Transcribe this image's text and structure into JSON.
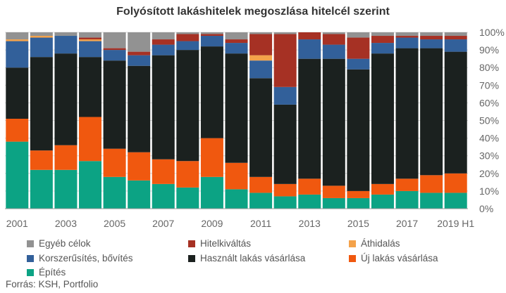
{
  "chart_data": {
    "type": "bar",
    "stacked": true,
    "title": "Folyósított lakáshitelek megoszlása hitelcél szerint",
    "categories": [
      "2001",
      "2002",
      "2003",
      "2004",
      "2005",
      "2006",
      "2007",
      "2008",
      "2009",
      "2010",
      "2011",
      "2012",
      "2013",
      "2014",
      "2015",
      "2016",
      "2017",
      "2018",
      "2019 H1"
    ],
    "x_tick_labels": [
      "2001",
      "2003",
      "2005",
      "2007",
      "2009",
      "2011",
      "2013",
      "2015",
      "2017",
      "2019 H1"
    ],
    "y_ticks": [
      "0%",
      "10%",
      "20%",
      "30%",
      "40%",
      "50%",
      "60%",
      "70%",
      "80%",
      "90%",
      "100%"
    ],
    "ylim": [
      0,
      100
    ],
    "y_axis_side": "right",
    "grid": true,
    "series": [
      {
        "name": "Építés",
        "color": "#0ca384",
        "values": [
          38,
          22,
          22,
          27,
          18,
          16,
          14,
          12,
          18,
          11,
          9,
          7,
          8,
          6,
          6,
          8,
          10,
          9,
          9
        ]
      },
      {
        "name": "Új lakás vásárlása",
        "color": "#f0580f",
        "values": [
          13,
          11,
          14,
          25,
          16,
          16,
          14,
          15,
          22,
          15,
          9,
          7,
          9,
          7,
          4,
          6,
          7,
          10,
          11
        ]
      },
      {
        "name": "Használt lakás vásárlása",
        "color": "#1b211f",
        "values": [
          29,
          53,
          52,
          34,
          50,
          49,
          59,
          63,
          52,
          62,
          56,
          45,
          68,
          72,
          69,
          74,
          74,
          72,
          69
        ]
      },
      {
        "name": "Korszerűsítés, bővítés",
        "color": "#32609a",
        "values": [
          15,
          11,
          10,
          9,
          6,
          6,
          6,
          5,
          6,
          6,
          10,
          10,
          11,
          8,
          6,
          6,
          6,
          5,
          7
        ]
      },
      {
        "name": "Áthidalás",
        "color": "#f4a24a",
        "values": [
          1,
          1,
          0,
          1,
          0,
          0,
          0,
          0,
          0,
          0,
          3,
          0,
          0,
          0,
          0,
          0,
          0,
          0,
          0
        ]
      },
      {
        "name": "Hitelkiváltás",
        "color": "#a63124",
        "values": [
          0,
          0,
          0,
          1,
          1,
          2,
          3,
          4,
          1,
          2,
          12,
          30,
          4,
          6,
          12,
          4,
          1,
          2,
          2
        ]
      },
      {
        "name": "Egyéb célok",
        "color": "#929292",
        "values": [
          4,
          2,
          2,
          3,
          9,
          11,
          4,
          1,
          1,
          4,
          1,
          1,
          0,
          1,
          3,
          2,
          2,
          2,
          2
        ]
      }
    ],
    "legend": [
      {
        "label": "Egyéb célok",
        "color": "#929292"
      },
      {
        "label": "Hitelkiváltás",
        "color": "#a63124"
      },
      {
        "label": "Áthidalás",
        "color": "#f4a24a"
      },
      {
        "label": "Korszerűsítés, bővítés",
        "color": "#32609a"
      },
      {
        "label": "Használt lakás vásárlása",
        "color": "#1b211f"
      },
      {
        "label": "Új lakás vásárlása",
        "color": "#f0580f"
      },
      {
        "label": "Építés",
        "color": "#0ca384"
      }
    ],
    "source": "Forrás: KSH, Portfolio"
  }
}
